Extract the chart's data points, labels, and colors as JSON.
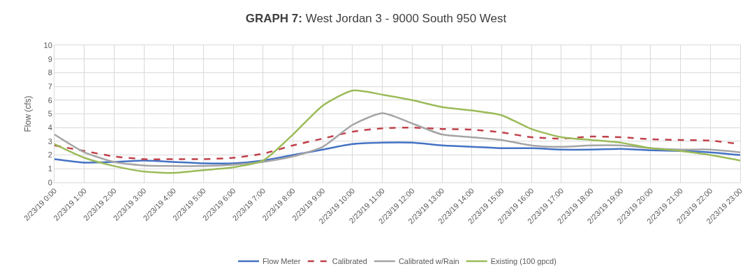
{
  "chart_data": {
    "type": "line",
    "title": "GRAPH 7: West Jordan 3 - 9000 South 950 West",
    "ylabel": "Flow (cfs)",
    "categories": [
      "2/23/19 0:00",
      "2/23/19 1:00",
      "2/23/19 2:00",
      "2/23/19 3:00",
      "2/23/19 4:00",
      "2/23/19 5:00",
      "2/23/19 6:00",
      "2/23/19 7:00",
      "2/23/19 8:00",
      "2/23/19 9:00",
      "2/23/19 10:00",
      "2/23/19 11:00",
      "2/23/19 12:00",
      "2/23/19 13:00",
      "2/23/19 14:00",
      "2/23/19 15:00",
      "2/23/19 16:00",
      "2/23/19 17:00",
      "2/23/19 18:00",
      "2/23/19 19:00",
      "2/23/19 20:00",
      "2/23/19 21:00",
      "2/23/19 22:00",
      "2/23/19 23:00"
    ],
    "series": [
      {
        "name": "Flow Meter",
        "color": "#4472c4",
        "line_style": "solid",
        "values": [
          1.7,
          1.45,
          1.5,
          1.6,
          1.5,
          1.4,
          1.4,
          1.6,
          2.0,
          2.4,
          2.8,
          2.9,
          2.9,
          2.7,
          2.6,
          2.5,
          2.5,
          2.4,
          2.4,
          2.45,
          2.35,
          2.3,
          2.2,
          2.0
        ]
      },
      {
        "name": "Calibrated",
        "color": "#c0404a",
        "line_style": "dashed",
        "values": [
          2.7,
          2.3,
          1.9,
          1.7,
          1.7,
          1.7,
          1.8,
          2.1,
          2.7,
          3.2,
          3.7,
          3.95,
          4.0,
          3.9,
          3.85,
          3.65,
          3.3,
          3.2,
          3.35,
          3.3,
          3.15,
          3.1,
          3.05,
          2.8
        ]
      },
      {
        "name": "Calibrated w/Rain",
        "color": "#a5a5a5",
        "line_style": "solid",
        "values": [
          3.5,
          2.2,
          1.5,
          1.25,
          1.2,
          1.2,
          1.3,
          1.5,
          1.9,
          2.6,
          4.2,
          5.05,
          4.3,
          3.5,
          3.3,
          3.1,
          2.7,
          2.6,
          2.7,
          2.7,
          2.5,
          2.4,
          2.4,
          2.2
        ]
      },
      {
        "name": "Existing (100 gpcd)",
        "color": "#9bbb59",
        "line_style": "solid",
        "values": [
          2.8,
          1.8,
          1.2,
          0.8,
          0.7,
          0.9,
          1.1,
          1.6,
          3.5,
          5.6,
          6.7,
          6.4,
          6.0,
          5.5,
          5.25,
          4.9,
          3.9,
          3.3,
          3.1,
          2.9,
          2.5,
          2.3,
          2.0,
          1.6
        ]
      }
    ],
    "ylim": [
      0,
      10
    ],
    "yticks": [
      0,
      1,
      2,
      3,
      4,
      5,
      6,
      7,
      8,
      9,
      10
    ],
    "grid": true,
    "legend": "bottom",
    "marker": "none"
  }
}
